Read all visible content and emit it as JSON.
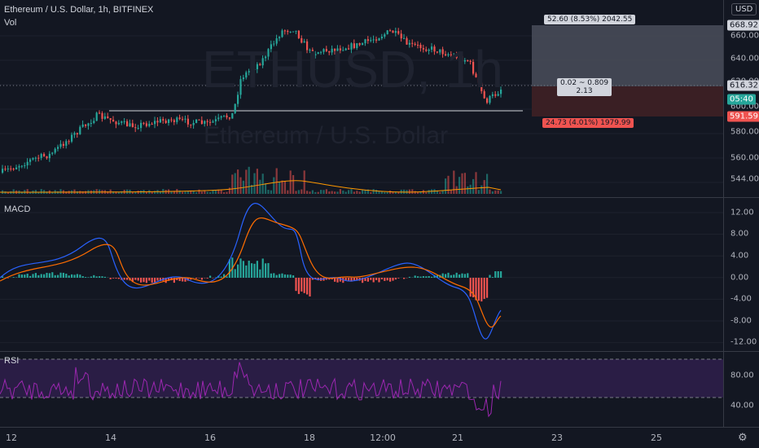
{
  "header": {
    "symbol_title": "Ethereum / U.S. Dollar, 1h, BITFINEX",
    "vol_label": "Vol",
    "watermark_ticker": "ETHUSD, 1h",
    "watermark_name": "Ethereum / U.S. Dollar",
    "currency_button": "USD"
  },
  "price_axis": {
    "ticks": [
      "660.00",
      "640.00",
      "620.00",
      "600.00",
      "580.00",
      "560.00",
      "544.00"
    ],
    "current_price": "616.32",
    "countdown": "05:40",
    "target_price": "668.92",
    "stop_price": "591.59"
  },
  "position_tool": {
    "target_label": "52.60 (8.53%) 2042.55",
    "center_line1": "0.02 ~ 0.809",
    "center_line2": "2.13",
    "stop_label": "24.73 (4.01%) 1979.99"
  },
  "macd": {
    "label": "MACD",
    "ticks": [
      "12.00",
      "8.00",
      "4.00",
      "0.00",
      "-4.00",
      "-8.00",
      "-12.00"
    ]
  },
  "rsi": {
    "label": "RSI",
    "ticks": [
      "80.00",
      "40.00"
    ]
  },
  "time_axis": {
    "labels": [
      "12",
      "14",
      "16",
      "18",
      "12:00",
      "21",
      "23",
      "25"
    ]
  },
  "colors": {
    "background": "#131722",
    "up": "#26a69a",
    "down": "#ef5350",
    "macd_line": "#2962ff",
    "signal_line": "#ff6d00",
    "rsi_line": "#9c27b0",
    "rsi_band": "#2a1d45",
    "target_zone": "#4a4e5a",
    "stop_zone": "#3a1f24"
  }
}
